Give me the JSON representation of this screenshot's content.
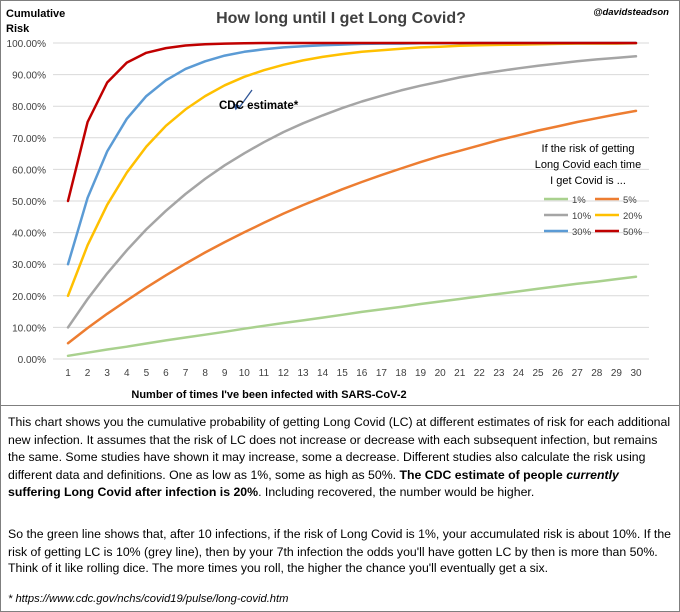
{
  "chart_data": {
    "type": "line",
    "title": "How long until I get Long Covid?",
    "credit": "@davidsteadson",
    "ylabel_line1": "Cumulative",
    "ylabel_line2": "Risk",
    "xlabel": "Number of times I've been infected with SARS-CoV-2",
    "x": [
      1,
      2,
      3,
      4,
      5,
      6,
      7,
      8,
      9,
      10,
      11,
      12,
      13,
      14,
      15,
      16,
      17,
      18,
      19,
      20,
      21,
      22,
      23,
      24,
      25,
      26,
      27,
      28,
      29,
      30
    ],
    "ylim": [
      0,
      100
    ],
    "yticks": [
      0,
      10,
      20,
      30,
      40,
      50,
      60,
      70,
      80,
      90,
      100
    ],
    "ytick_labels": [
      "0.00%",
      "10.00%",
      "20.00%",
      "30.00%",
      "40.00%",
      "50.00%",
      "60.00%",
      "70.00%",
      "80.00%",
      "90.00%",
      "100.00%"
    ],
    "grid": "horizontal",
    "legend_title": [
      "If the risk of getting",
      "Long Covid each time",
      "I get Covid is ..."
    ],
    "legend_position": "right",
    "series": [
      {
        "name": "1%",
        "color": "#a9d18e",
        "values": [
          1.0,
          2.0,
          3.0,
          3.9,
          4.9,
          5.9,
          6.8,
          7.7,
          8.6,
          9.6,
          10.5,
          11.4,
          12.2,
          13.1,
          14.0,
          14.9,
          15.7,
          16.5,
          17.4,
          18.2,
          19.0,
          19.8,
          20.6,
          21.4,
          22.2,
          23.0,
          23.8,
          24.5,
          25.3,
          26.0
        ]
      },
      {
        "name": "5%",
        "color": "#ed7d31",
        "values": [
          5.0,
          9.8,
          14.3,
          18.5,
          22.6,
          26.5,
          30.2,
          33.7,
          37.0,
          40.1,
          43.1,
          46.0,
          48.7,
          51.2,
          53.7,
          56.0,
          58.2,
          60.3,
          62.3,
          64.2,
          65.9,
          67.6,
          69.3,
          70.8,
          72.3,
          73.6,
          75.0,
          76.2,
          77.4,
          78.5
        ]
      },
      {
        "name": "10%",
        "color": "#a5a5a5",
        "values": [
          10.0,
          19.0,
          27.1,
          34.4,
          41.0,
          46.9,
          52.2,
          57.0,
          61.3,
          65.1,
          68.6,
          71.8,
          74.6,
          77.1,
          79.4,
          81.5,
          83.3,
          85.0,
          86.5,
          87.8,
          89.1,
          90.2,
          91.1,
          92.0,
          92.8,
          93.5,
          94.2,
          94.8,
          95.3,
          95.8
        ]
      },
      {
        "name": "20%",
        "color": "#ffc000",
        "values": [
          20.0,
          36.0,
          48.8,
          59.0,
          67.2,
          73.8,
          79.0,
          83.2,
          86.6,
          89.3,
          91.4,
          93.1,
          94.5,
          95.6,
          96.5,
          97.2,
          97.7,
          98.2,
          98.6,
          98.8,
          99.1,
          99.3,
          99.4,
          99.5,
          99.6,
          99.7,
          99.8,
          99.8,
          99.8,
          99.9
        ]
      },
      {
        "name": "30%",
        "color": "#5b9bd5",
        "values": [
          30.0,
          51.0,
          65.7,
          76.0,
          83.2,
          88.2,
          91.8,
          94.2,
          96.0,
          97.2,
          98.0,
          98.6,
          99.0,
          99.3,
          99.5,
          99.7,
          99.8,
          99.8,
          99.9,
          99.9,
          99.9,
          100.0,
          100.0,
          100.0,
          100.0,
          100.0,
          100.0,
          100.0,
          100.0,
          100.0
        ]
      },
      {
        "name": "50%",
        "color": "#c00000",
        "values": [
          50.0,
          75.0,
          87.5,
          93.8,
          96.9,
          98.4,
          99.2,
          99.6,
          99.8,
          99.9,
          100.0,
          100.0,
          100.0,
          100.0,
          100.0,
          100.0,
          100.0,
          100.0,
          100.0,
          100.0,
          100.0,
          100.0,
          100.0,
          100.0,
          100.0,
          100.0,
          100.0,
          100.0,
          100.0,
          100.0
        ]
      }
    ],
    "annotation": {
      "text": "CDC estimate*",
      "series": "20%",
      "x": 9
    }
  },
  "description": {
    "p1_text": "This chart shows you the cumulative probability of getting Long Covid (LC) at different estimates of risk for each additional new infection. It assumes that the risk of LC does not increase or decrease with each subsequent infection, but remains the same. Some studies have shown it may increase, some a decrease. Different studies also calculate the risk using different data and definitions. One as low as 1%, some as high as 50%.",
    "p1_bold_a": "The CDC estimate of people",
    "p1_bold_italic": "currently",
    "p1_bold_b": "suffering Long Covid after infection is 20%",
    "p1_tail": ". Including recovered, the number would be higher.",
    "p2": "So the green line shows that, after 10 infections, if the risk of Long Covid is 1%, your accumulated risk is about 10%. If the risk of getting LC is 10% (grey line), then by your 7th infection the odds you'll have gotten LC by then is more than 50%.",
    "p3": "Think of it like rolling dice. The more times you roll, the higher the chance you'll eventually get a six.",
    "footnote": "* https://www.cdc.gov/nchs/covid19/pulse/long-covid.htm"
  }
}
